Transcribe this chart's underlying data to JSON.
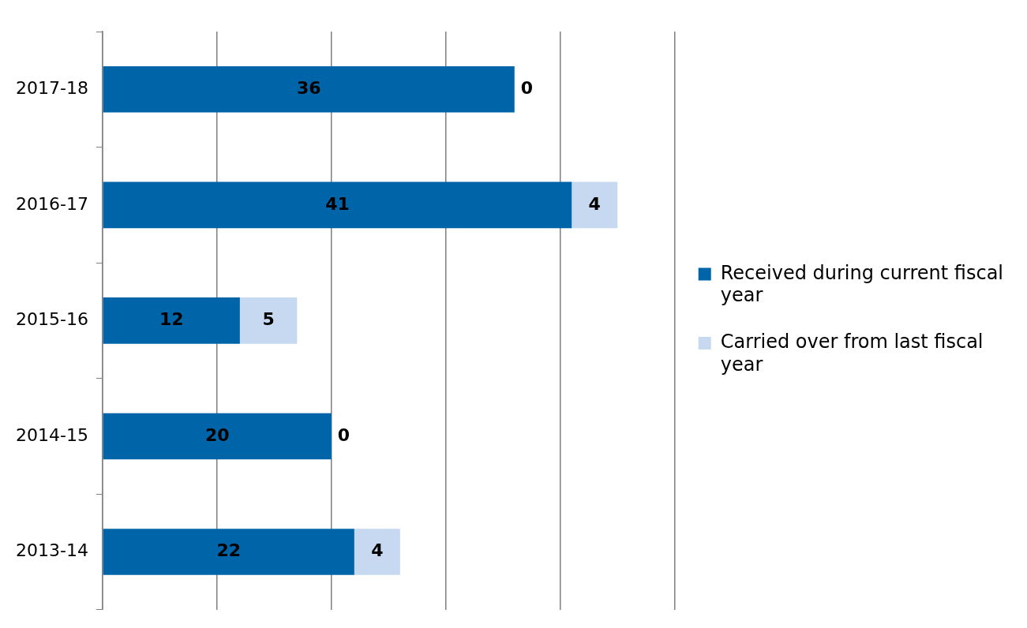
{
  "chart_data": {
    "type": "bar",
    "orientation": "horizontal",
    "stacked": true,
    "categories": [
      "2017-18",
      "2016-17",
      "2015-16",
      "2014-15",
      "2013-14"
    ],
    "series": [
      {
        "name": "Received during current fiscal year",
        "color": "#0064a8",
        "values": [
          36,
          41,
          12,
          20,
          22
        ]
      },
      {
        "name": "Carried over from last fiscal year",
        "color": "#c6d9f0",
        "values": [
          0,
          4,
          5,
          0,
          4
        ]
      }
    ],
    "xlim": [
      0,
      50
    ],
    "xticks": [
      {
        "value": 0,
        "label": null
      },
      {
        "value": 10,
        "label": null
      },
      {
        "value": 20,
        "label": null
      },
      {
        "value": 30,
        "label": null
      },
      {
        "value": 40,
        "label": null
      },
      {
        "value": 50,
        "label": null
      }
    ],
    "tick_labels": "y",
    "grid": "x",
    "legend": "right",
    "data_labels": true
  }
}
